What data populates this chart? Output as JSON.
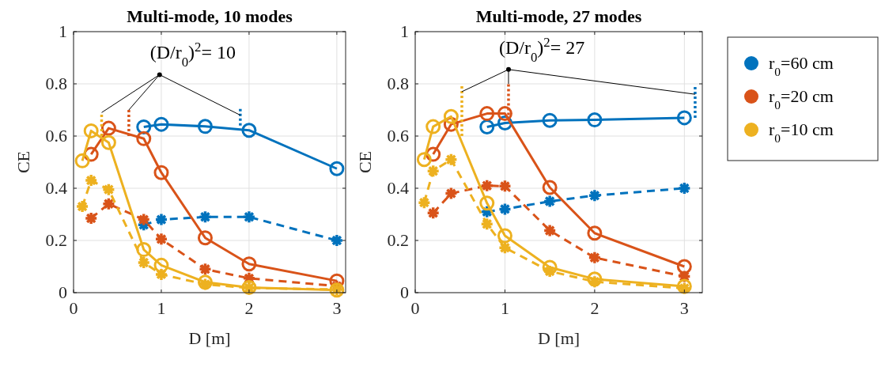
{
  "chart_data": [
    {
      "type": "line",
      "title": "Multi-mode, 10 modes",
      "xlabel": "D [m]",
      "ylabel": "CE",
      "xlim": [
        0,
        3.1
      ],
      "ylim": [
        0,
        1
      ],
      "xticks": [
        {
          "value": 0,
          "label": "0"
        },
        1,
        2,
        3
      ],
      "yticks": [
        {
          "value": 0,
          "label": "0"
        },
        {
          "value": 0.2,
          "label": "0.2"
        },
        {
          "value": 0.4,
          "label": "0.4"
        },
        {
          "value": 0.6,
          "label": "0.6"
        },
        {
          "value": 0.8,
          "label": "0.8"
        },
        1
      ],
      "grid": true,
      "legend": false,
      "annotations": [
        {
          "text": "(D/r$_{0}$)$^{2}$= 10",
          "x": 0.98,
          "y": 0.835
        }
      ],
      "series": [
        {
          "color": "#0072bd",
          "marker": "circle",
          "line_style": "solid",
          "x": [
            0.8,
            1,
            1.5,
            2,
            3
          ],
          "values": [
            0.635,
            0.645,
            0.637,
            0.622,
            0.475
          ]
        },
        {
          "color": "#0072bd",
          "marker": "cross",
          "line_style": "dashed",
          "x": [
            0.8,
            1,
            1.5,
            2,
            3
          ],
          "values": [
            0.26,
            0.28,
            0.29,
            0.29,
            0.2
          ]
        },
        {
          "color": "#d95319",
          "marker": "circle",
          "line_style": "solid",
          "x": [
            0.2,
            0.4,
            0.8,
            1,
            1.5,
            2,
            3
          ],
          "values": [
            0.53,
            0.63,
            0.59,
            0.46,
            0.21,
            0.11,
            0.045
          ]
        },
        {
          "color": "#d95319",
          "marker": "cross",
          "line_style": "dashed",
          "x": [
            0.2,
            0.4,
            0.8,
            1,
            1.5,
            2,
            3
          ],
          "values": [
            0.285,
            0.34,
            0.28,
            0.205,
            0.09,
            0.055,
            0.025
          ]
        },
        {
          "color": "#edb120",
          "marker": "circle",
          "line_style": "solid",
          "x": [
            0.1,
            0.2,
            0.4,
            0.8,
            1,
            1.5,
            2,
            3
          ],
          "values": [
            0.505,
            0.62,
            0.575,
            0.165,
            0.105,
            0.04,
            0.02,
            0.01
          ]
        },
        {
          "color": "#edb120",
          "marker": "cross",
          "line_style": "dashed",
          "x": [
            0.1,
            0.2,
            0.4,
            0.8,
            1,
            1.5,
            2,
            3
          ],
          "values": [
            0.33,
            0.43,
            0.395,
            0.115,
            0.07,
            0.032,
            0.018,
            0.012
          ]
        },
        {
          "color": "#edb120",
          "marker": "none",
          "line_style": "dotted",
          "x": [
            0.32,
            0.32
          ],
          "values": [
            0.6,
            0.69
          ]
        },
        {
          "color": "#d95319",
          "marker": "none",
          "line_style": "dotted",
          "x": [
            0.63,
            0.63
          ],
          "values": [
            0.6,
            0.7
          ]
        },
        {
          "color": "#0072bd",
          "marker": "none",
          "line_style": "dotted",
          "x": [
            1.9,
            1.9
          ],
          "values": [
            0.64,
            0.71
          ]
        },
        {
          "color": "#000000",
          "marker": "none",
          "line_style": "solid",
          "x": [
            0.32,
            0.98,
            1.9
          ],
          "values": [
            0.69,
            0.835,
            0.68
          ]
        },
        {
          "color": "#000000",
          "marker": "none",
          "line_style": "solid",
          "x": [
            0.63,
            0.98
          ],
          "values": [
            0.7,
            0.835
          ]
        }
      ]
    },
    {
      "type": "line",
      "title": "Multi-mode, 27 modes",
      "xlabel": "D [m]",
      "ylabel": "CE",
      "xlim": [
        0,
        3.2
      ],
      "ylim": [
        0,
        1
      ],
      "xticks": [
        {
          "value": 0,
          "label": "0"
        },
        1,
        2,
        3
      ],
      "yticks": [
        {
          "value": 0,
          "label": "0"
        },
        {
          "value": 0.2,
          "label": "0.2"
        },
        {
          "value": 0.4,
          "label": "0.4"
        },
        {
          "value": 0.6,
          "label": "0.6"
        },
        {
          "value": 0.8,
          "label": "0.8"
        },
        1
      ],
      "grid": true,
      "legend": "right",
      "annotations": [
        {
          "text": "(D/r$_{0}$)$^{2}$= 27",
          "x": 1.04,
          "y": 0.855
        }
      ],
      "series": [
        {
          "name": "r$_{0}$=60 cm",
          "color": "#0072bd",
          "marker": "circle",
          "line_style": "solid",
          "x": [
            0.8,
            1,
            1.5,
            2,
            3
          ],
          "values": [
            0.635,
            0.65,
            0.66,
            0.662,
            0.67
          ]
        },
        {
          "color": "#0072bd",
          "marker": "cross",
          "line_style": "dashed",
          "x": [
            0.8,
            1,
            1.5,
            2,
            3
          ],
          "values": [
            0.31,
            0.32,
            0.35,
            0.372,
            0.4
          ]
        },
        {
          "name": "r$_{0}$=20 cm",
          "color": "#d95319",
          "marker": "circle",
          "line_style": "solid",
          "x": [
            0.2,
            0.4,
            0.8,
            1,
            1.5,
            2,
            3
          ],
          "values": [
            0.53,
            0.645,
            0.686,
            0.686,
            0.403,
            0.228,
            0.1
          ]
        },
        {
          "color": "#d95319",
          "marker": "cross",
          "line_style": "dashed",
          "x": [
            0.2,
            0.4,
            0.8,
            1,
            1.5,
            2,
            3
          ],
          "values": [
            0.305,
            0.38,
            0.41,
            0.408,
            0.238,
            0.134,
            0.062
          ]
        },
        {
          "name": "r$_{0}$=10 cm",
          "color": "#edb120",
          "marker": "circle",
          "line_style": "solid",
          "x": [
            0.1,
            0.2,
            0.4,
            0.8,
            1,
            1.5,
            2,
            3
          ],
          "values": [
            0.51,
            0.636,
            0.675,
            0.343,
            0.218,
            0.097,
            0.052,
            0.024
          ]
        },
        {
          "color": "#edb120",
          "marker": "cross",
          "line_style": "dashed",
          "x": [
            0.1,
            0.2,
            0.4,
            0.8,
            1,
            1.5,
            2,
            3
          ],
          "values": [
            0.345,
            0.466,
            0.51,
            0.263,
            0.172,
            0.082,
            0.042,
            0.017
          ]
        },
        {
          "color": "#edb120",
          "marker": "none",
          "line_style": "dotted",
          "x": [
            0.52,
            0.52
          ],
          "values": [
            0.6,
            0.8
          ]
        },
        {
          "color": "#d95319",
          "marker": "none",
          "line_style": "dotted",
          "x": [
            1.04,
            1.04
          ],
          "values": [
            0.68,
            0.8
          ]
        },
        {
          "color": "#0072bd",
          "marker": "none",
          "line_style": "dotted",
          "x": [
            3.12,
            3.12
          ],
          "values": [
            0.67,
            0.79
          ]
        },
        {
          "color": "#000000",
          "marker": "none",
          "line_style": "solid",
          "x": [
            0.52,
            1.04,
            3.12
          ],
          "values": [
            0.77,
            0.855,
            0.76
          ]
        },
        {
          "color": "#000000",
          "marker": "none",
          "line_style": "solid",
          "x": [
            1.04,
            1.04
          ],
          "values": [
            0.8,
            0.855
          ]
        }
      ]
    }
  ]
}
